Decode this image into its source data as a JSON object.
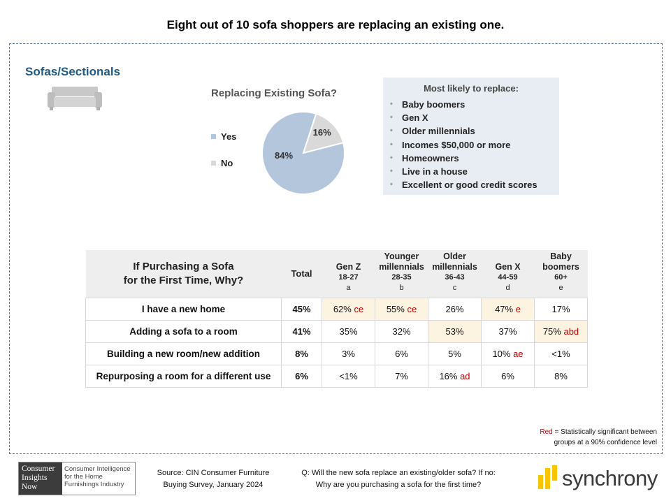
{
  "title": "Eight out of 10 sofa shoppers are replacing an existing one.",
  "section": {
    "title": "Sofas/Sectionals",
    "icon": "sofa-icon"
  },
  "pie": {
    "title": "Replacing Existing Sofa?",
    "legend": [
      {
        "label": "Yes",
        "color": "#b4c6db"
      },
      {
        "label": "No",
        "color": "#d9d9d9"
      }
    ]
  },
  "panel": {
    "heading": "Most likely to replace:",
    "items": [
      "Baby boomers",
      "Gen X",
      "Older millennials",
      "Incomes $50,000 or more",
      "Homeowners",
      "Live in a house",
      "Excellent or good credit scores"
    ]
  },
  "table": {
    "title_line1": "If Purchasing a Sofa",
    "title_line2": "for the First Time, Why?",
    "total_label": "Total",
    "columns": [
      {
        "line1": "",
        "line2": "Gen Z",
        "range": "18-27",
        "letter": "a"
      },
      {
        "line1": "Younger",
        "line2": "millennials",
        "range": "28-35",
        "letter": "b"
      },
      {
        "line1": "Older",
        "line2": "millennials",
        "range": "36-43",
        "letter": "c"
      },
      {
        "line1": "",
        "line2": "Gen X",
        "range": "44-59",
        "letter": "d"
      },
      {
        "line1": "Baby",
        "line2": "boomers",
        "range": "60+",
        "letter": "e"
      }
    ],
    "rows": [
      {
        "label": "I have a new home",
        "total": "45%",
        "cells": [
          {
            "value": "62%",
            "sig": "ce",
            "highlight": true
          },
          {
            "value": "55%",
            "sig": "ce",
            "highlight": true
          },
          {
            "value": "26%",
            "sig": "",
            "highlight": false
          },
          {
            "value": "47%",
            "sig": "e",
            "highlight": true
          },
          {
            "value": "17%",
            "sig": "",
            "highlight": false
          }
        ]
      },
      {
        "label": "Adding a sofa to a room",
        "total": "41%",
        "cells": [
          {
            "value": "35%",
            "sig": "",
            "highlight": false
          },
          {
            "value": "32%",
            "sig": "",
            "highlight": false
          },
          {
            "value": "53%",
            "sig": "",
            "highlight": true
          },
          {
            "value": "37%",
            "sig": "",
            "highlight": false
          },
          {
            "value": "75%",
            "sig": "abd",
            "highlight": true
          }
        ]
      },
      {
        "label": "Building a new room/new addition",
        "total": "8%",
        "cells": [
          {
            "value": "3%",
            "sig": "",
            "highlight": false
          },
          {
            "value": "6%",
            "sig": "",
            "highlight": false
          },
          {
            "value": "5%",
            "sig": "",
            "highlight": false
          },
          {
            "value": "10%",
            "sig": "ae",
            "highlight": false
          },
          {
            "value": "<1%",
            "sig": "",
            "highlight": false
          }
        ]
      },
      {
        "label": "Repurposing a room for a different use",
        "total": "6%",
        "cells": [
          {
            "value": "<1%",
            "sig": "",
            "highlight": false
          },
          {
            "value": "7%",
            "sig": "",
            "highlight": false
          },
          {
            "value": "16%",
            "sig": "ad",
            "highlight": false
          },
          {
            "value": "6%",
            "sig": "",
            "highlight": false
          },
          {
            "value": "8%",
            "sig": "",
            "highlight": false
          }
        ]
      }
    ]
  },
  "note": {
    "red_word": "Red",
    "line1_rest": " = Statistically significant between",
    "line2": "groups at a 90% confidence level",
    "red_color": "#c00000"
  },
  "footer": {
    "cin_logo_left": [
      "Consumer",
      "Insights",
      "Now"
    ],
    "cin_logo_right": [
      "Consumer Intelligence",
      "for the Home",
      "Furnishings Industry"
    ],
    "source_line1": "Source:  CIN Consumer Furniture",
    "source_line2": "Buying Survey, January 2024",
    "question_line1": "Q: Will the new  sofa replace an existing/older sofa? If no:",
    "question_line2": "Why are you purchasing a sofa for the first time?",
    "brand": "synchrony",
    "brand_color": "#fbc600"
  },
  "chart_data": [
    {
      "type": "pie",
      "title": "Replacing Existing Sofa?",
      "labels": [
        "Yes",
        "No"
      ],
      "values": [
        84,
        16
      ],
      "data_labels": [
        "84%",
        "16%"
      ],
      "colors": [
        "#b4c6db",
        "#d9d9d9"
      ],
      "legend": "left"
    },
    {
      "type": "table",
      "title": "If Purchasing a Sofa for the First Time, Why?",
      "columns": [
        "Total",
        "Gen Z 18-27 a",
        "Younger millennials 28-35 b",
        "Older millennials 36-43 c",
        "Gen X 44-59 d",
        "Baby boomers 60+ e"
      ],
      "rows": [
        {
          "label": "I have a new home",
          "values": [
            "45%",
            "62% ce",
            "55% ce",
            "26%",
            "47% e",
            "17%"
          ]
        },
        {
          "label": "Adding a sofa to a room",
          "values": [
            "41%",
            "35%",
            "32%",
            "53%",
            "37%",
            "75% abd"
          ]
        },
        {
          "label": "Building a new room/new addition",
          "values": [
            "8%",
            "3%",
            "6%",
            "5%",
            "10% ae",
            "<1%"
          ]
        },
        {
          "label": "Repurposing a room for a different use",
          "values": [
            "6%",
            "<1%",
            "7%",
            "16% ad",
            "6%",
            "8%"
          ]
        }
      ]
    }
  ]
}
